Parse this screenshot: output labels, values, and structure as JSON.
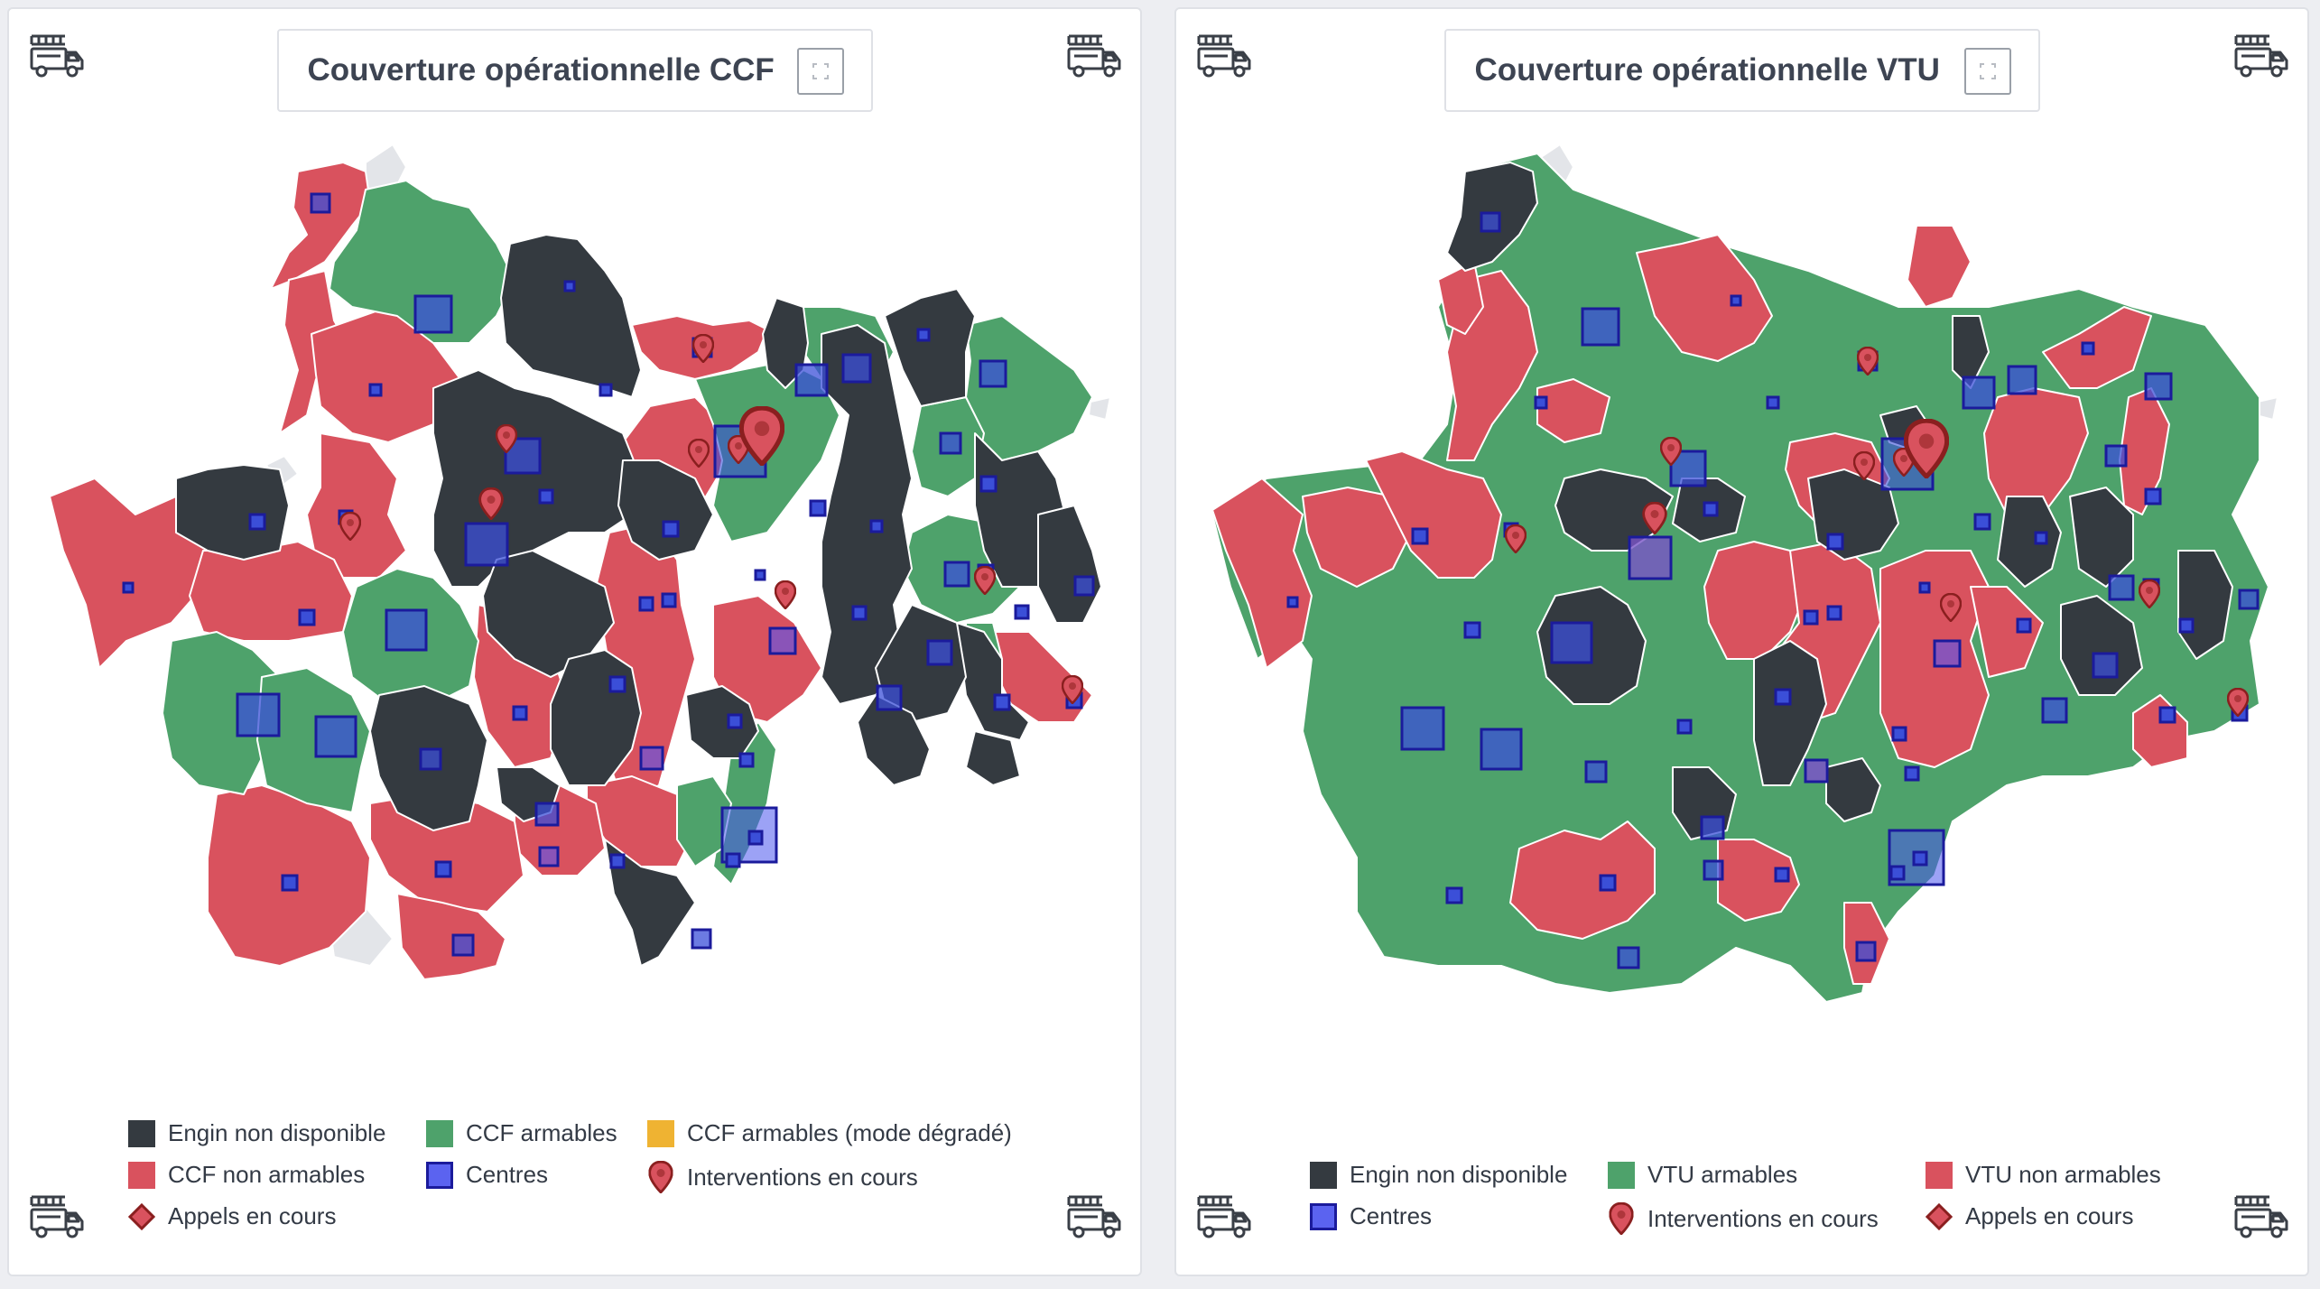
{
  "colors": {
    "unavailable": "#343a40",
    "armable": "#4ea26b",
    "non_armable": "#d9525e",
    "degraded": "#efb332",
    "center_fill": "#3b4fd8",
    "center_stroke": "#1b1b9c",
    "intervention": "#b03030"
  },
  "panels": [
    {
      "title": "Couverture opérationnelle CCF",
      "legend": [
        {
          "label": "Engin non disponible",
          "kind": "unavailable"
        },
        {
          "label": "CCF armables",
          "kind": "armable"
        },
        {
          "label": "CCF armables (mode dégradé)",
          "kind": "degraded"
        },
        {
          "label": "CCF non armables",
          "kind": "non_armable"
        },
        {
          "label": "Centres",
          "kind": "center"
        },
        {
          "label": "Interventions en cours",
          "kind": "intervention"
        },
        {
          "label": "Appels en cours",
          "kind": "call"
        }
      ]
    },
    {
      "title": "Couverture opérationnelle VTU",
      "legend": [
        {
          "label": "Engin non disponible",
          "kind": "unavailable"
        },
        {
          "label": "VTU armables",
          "kind": "armable"
        },
        {
          "label": "VTU non armables",
          "kind": "non_armable"
        },
        {
          "label": "Centres",
          "kind": "center"
        },
        {
          "label": "Interventions en cours",
          "kind": "intervention"
        },
        {
          "label": "Appels en cours",
          "kind": "call"
        }
      ]
    }
  ],
  "icons": {
    "corner": "fire-truck-icon",
    "expand": "fullscreen-icon"
  }
}
